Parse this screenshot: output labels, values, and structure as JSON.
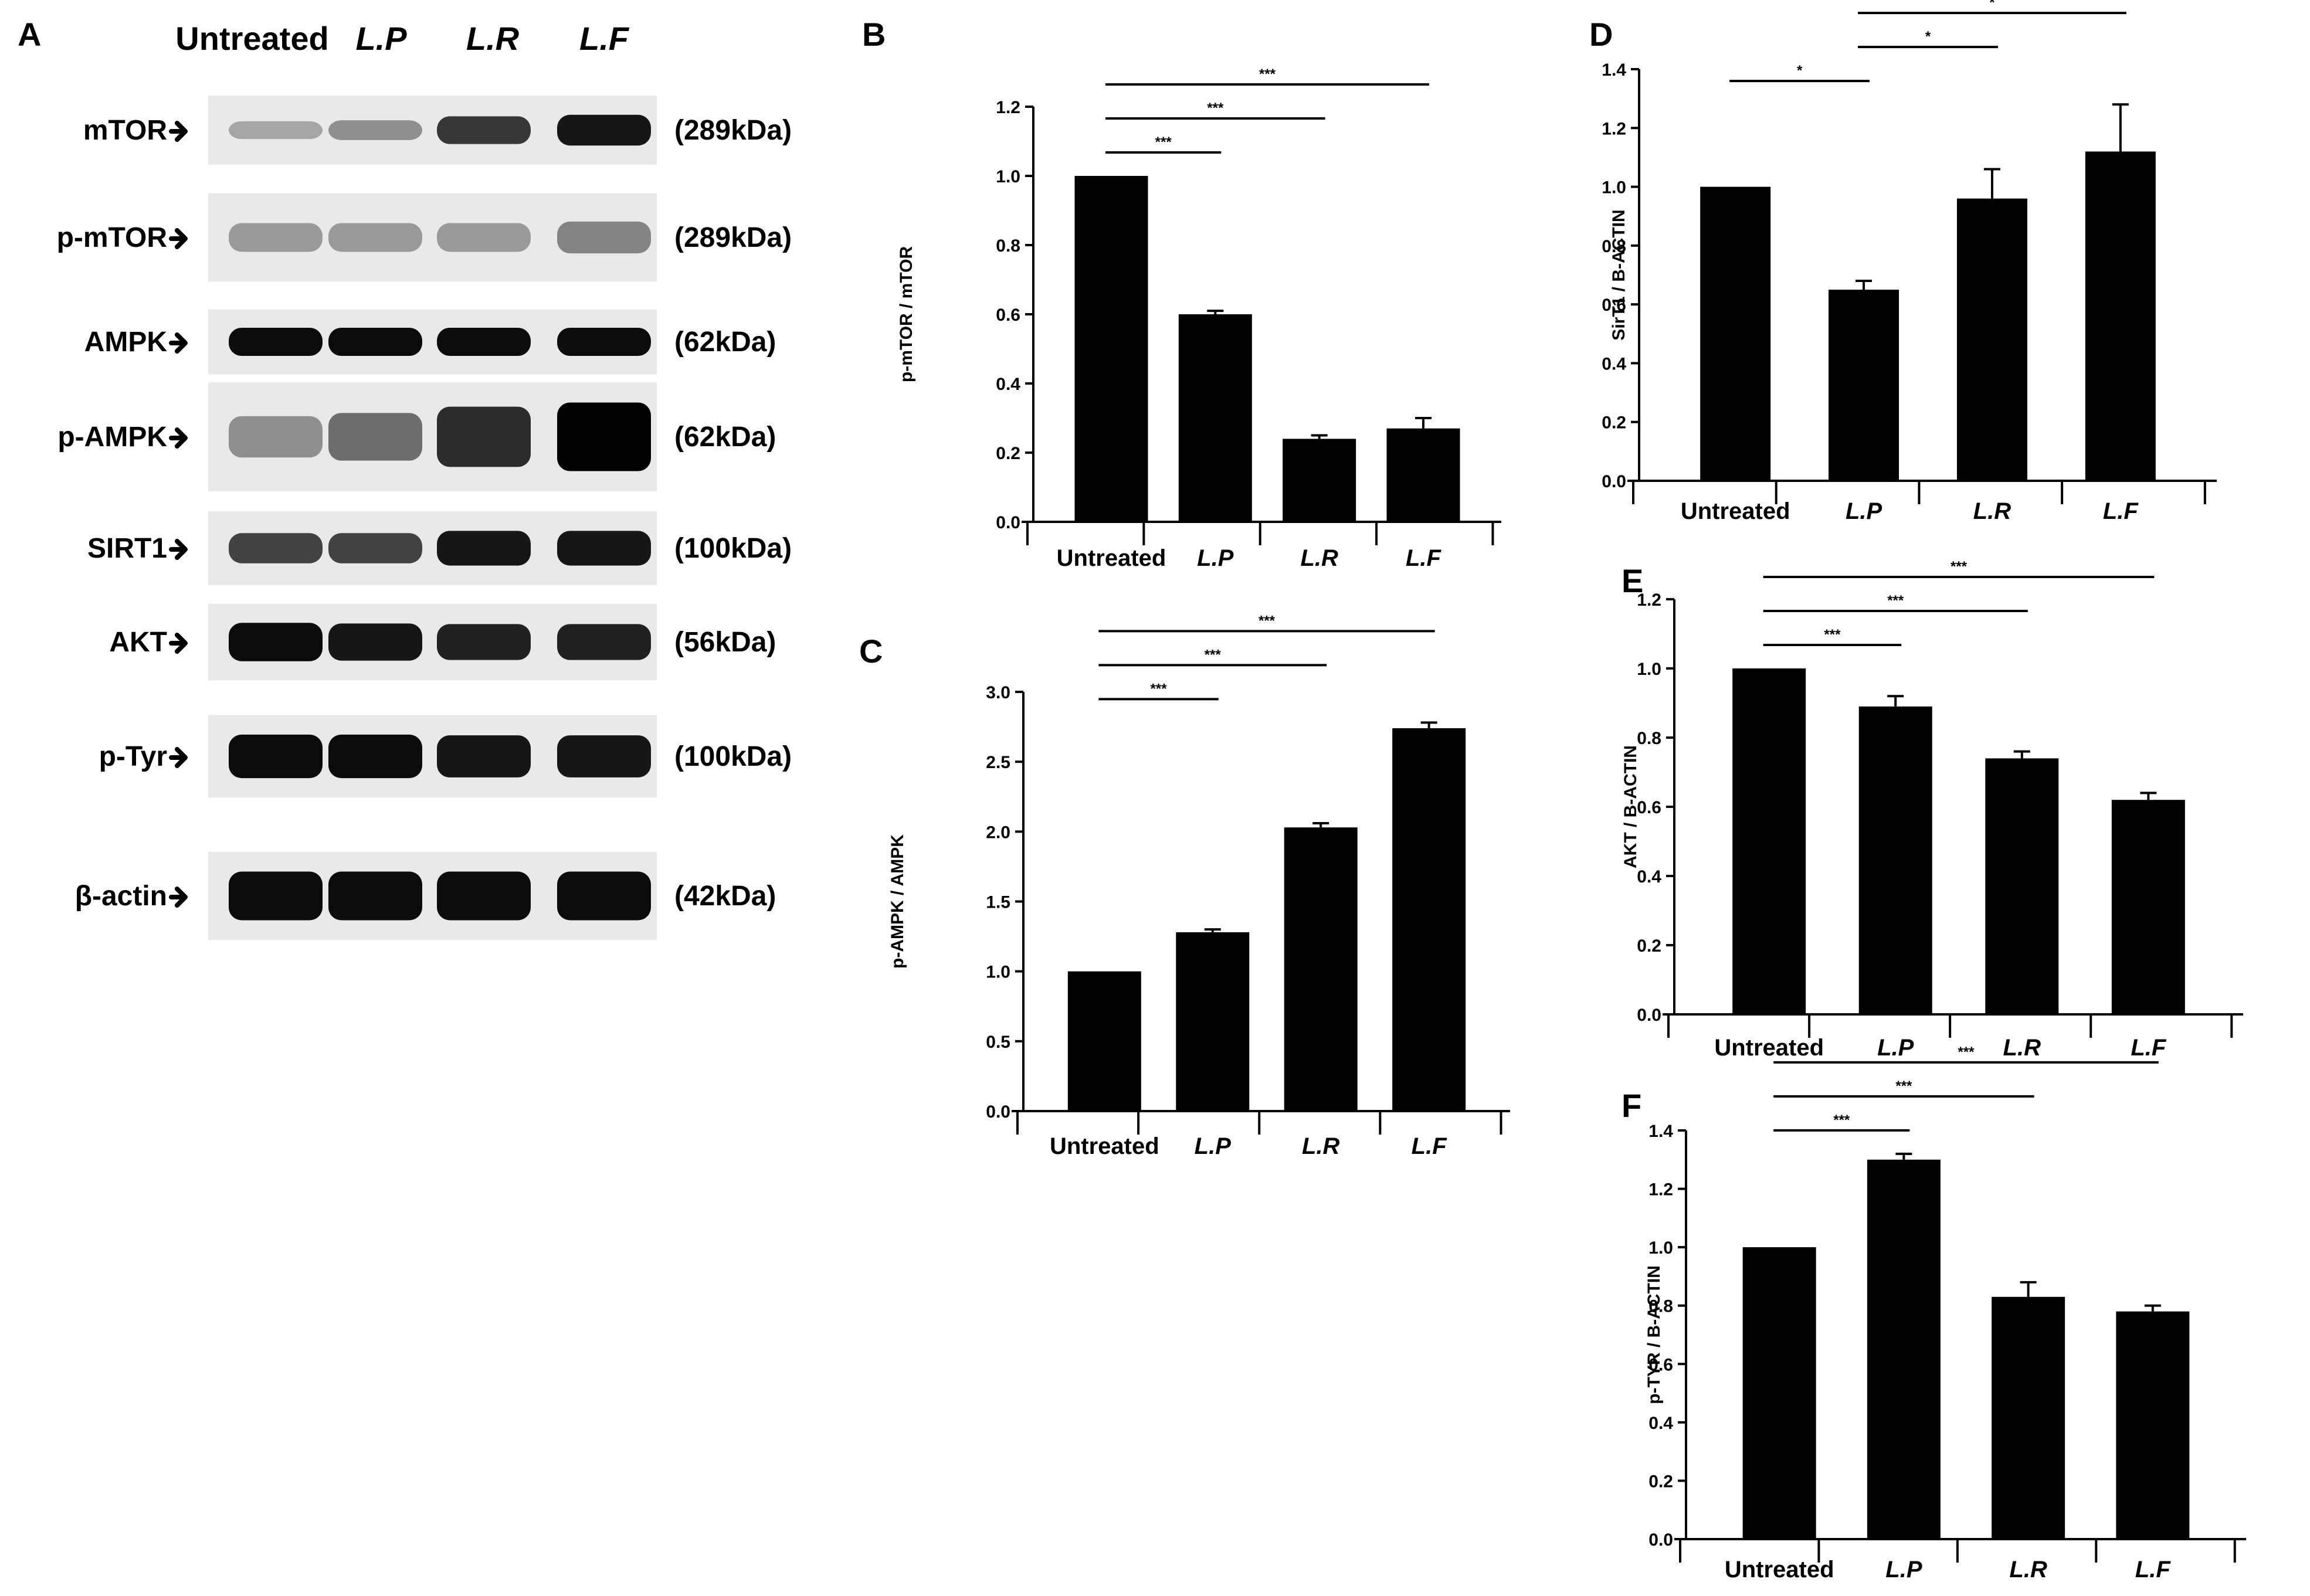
{
  "blot": {
    "panel_label": "A",
    "lanes": [
      "Untreated",
      "L.P",
      "L.R",
      "L.F"
    ],
    "rows": [
      {
        "label": "mTOR",
        "kda": "(289kDa)",
        "intensity": [
          0.25,
          0.35,
          0.75,
          0.9
        ]
      },
      {
        "label": "p-mTOR",
        "kda": "(289kDa)",
        "intensity": [
          0.3,
          0.3,
          0.3,
          0.4
        ]
      },
      {
        "label": "AMPK",
        "kda": "(62kDa)",
        "intensity": [
          0.95,
          0.95,
          0.95,
          0.95
        ]
      },
      {
        "label": "p-AMPK",
        "kda": "(62kDa)",
        "intensity": [
          0.35,
          0.5,
          0.8,
          1.0
        ]
      },
      {
        "label": "SIRT1",
        "kda": "(100kDa)",
        "intensity": [
          0.7,
          0.7,
          0.9,
          0.9
        ]
      },
      {
        "label": "AKT",
        "kda": "(56kDa)",
        "intensity": [
          0.95,
          0.9,
          0.85,
          0.85
        ]
      },
      {
        "label": "p-Tyr",
        "kda": "(100kDa)",
        "intensity": [
          0.95,
          0.95,
          0.9,
          0.9
        ]
      },
      {
        "label": "β-actin",
        "kda": "(42kDa)",
        "intensity": [
          0.95,
          0.95,
          0.95,
          0.95
        ]
      }
    ]
  },
  "chart_data": [
    {
      "panel": "B",
      "type": "bar",
      "categories": [
        "Untreated",
        "L.P",
        "L.R",
        "L.F"
      ],
      "values": [
        1.0,
        0.6,
        0.24,
        0.27
      ],
      "errors": [
        0,
        0.01,
        0.01,
        0.03
      ],
      "ylabel": "p-mTOR / mTOR",
      "ylim": [
        0,
        1.2
      ],
      "yticks": [
        "0.0",
        "0.2",
        "0.4",
        "0.6",
        "0.8",
        "1.0",
        "1.2"
      ],
      "significance": [
        {
          "from": 0,
          "to": 1,
          "label": "***"
        },
        {
          "from": 0,
          "to": 2,
          "label": "***"
        },
        {
          "from": 0,
          "to": 3,
          "label": "***"
        }
      ]
    },
    {
      "panel": "C",
      "type": "bar",
      "categories": [
        "Untreated",
        "L.P",
        "L.R",
        "L.F"
      ],
      "values": [
        1.0,
        1.28,
        2.03,
        2.74
      ],
      "errors": [
        0,
        0.02,
        0.03,
        0.04
      ],
      "ylabel": "p-AMPK / AMPK",
      "ylim": [
        0,
        3.0
      ],
      "yticks": [
        "0.0",
        "0.5",
        "1.0",
        "1.5",
        "2.0",
        "2.5",
        "3.0"
      ],
      "significance": [
        {
          "from": 0,
          "to": 1,
          "label": "***"
        },
        {
          "from": 0,
          "to": 2,
          "label": "***"
        },
        {
          "from": 0,
          "to": 3,
          "label": "***"
        }
      ]
    },
    {
      "panel": "D",
      "type": "bar",
      "categories": [
        "Untreated",
        "L.P",
        "L.R",
        "L.F"
      ],
      "values": [
        1.0,
        0.65,
        0.96,
        1.12
      ],
      "errors": [
        0,
        0.03,
        0.1,
        0.16
      ],
      "ylabel": "SirT1 / B-ACTIN",
      "ylim": [
        0,
        1.4
      ],
      "yticks": [
        "0.0",
        "0.2",
        "0.4",
        "0.6",
        "0.8",
        "1.0",
        "1.2",
        "1.4"
      ],
      "significance": [
        {
          "from": 0,
          "to": 1,
          "label": "*"
        },
        {
          "from": 1,
          "to": 2,
          "label": "*"
        },
        {
          "from": 1,
          "to": 3,
          "label": "*"
        }
      ]
    },
    {
      "panel": "E",
      "type": "bar",
      "categories": [
        "Untreated",
        "L.P",
        "L.R",
        "L.F"
      ],
      "values": [
        1.0,
        0.89,
        0.74,
        0.62
      ],
      "errors": [
        0,
        0.03,
        0.02,
        0.02
      ],
      "ylabel": "AKT / B-ACTIN",
      "ylim": [
        0,
        1.2
      ],
      "yticks": [
        "0.0",
        "0.2",
        "0.4",
        "0.6",
        "0.8",
        "1.0",
        "1.2"
      ],
      "significance": [
        {
          "from": 0,
          "to": 1,
          "label": "***"
        },
        {
          "from": 0,
          "to": 2,
          "label": "***"
        },
        {
          "from": 0,
          "to": 3,
          "label": "***"
        }
      ]
    },
    {
      "panel": "F",
      "type": "bar",
      "categories": [
        "Untreated",
        "L.P",
        "L.R",
        "L.F"
      ],
      "values": [
        1.0,
        1.3,
        0.83,
        0.78
      ],
      "errors": [
        0,
        0.02,
        0.05,
        0.02
      ],
      "ylabel": "p-TYR / B-ACTIN",
      "ylim": [
        0,
        1.4
      ],
      "yticks": [
        "0.0",
        "0.2",
        "0.4",
        "0.6",
        "0.8",
        "1.0",
        "1.2",
        "1.4"
      ],
      "significance": [
        {
          "from": 0,
          "to": 1,
          "label": "***"
        },
        {
          "from": 0,
          "to": 2,
          "label": "***"
        },
        {
          "from": 0,
          "to": 3,
          "label": "***"
        }
      ]
    }
  ]
}
